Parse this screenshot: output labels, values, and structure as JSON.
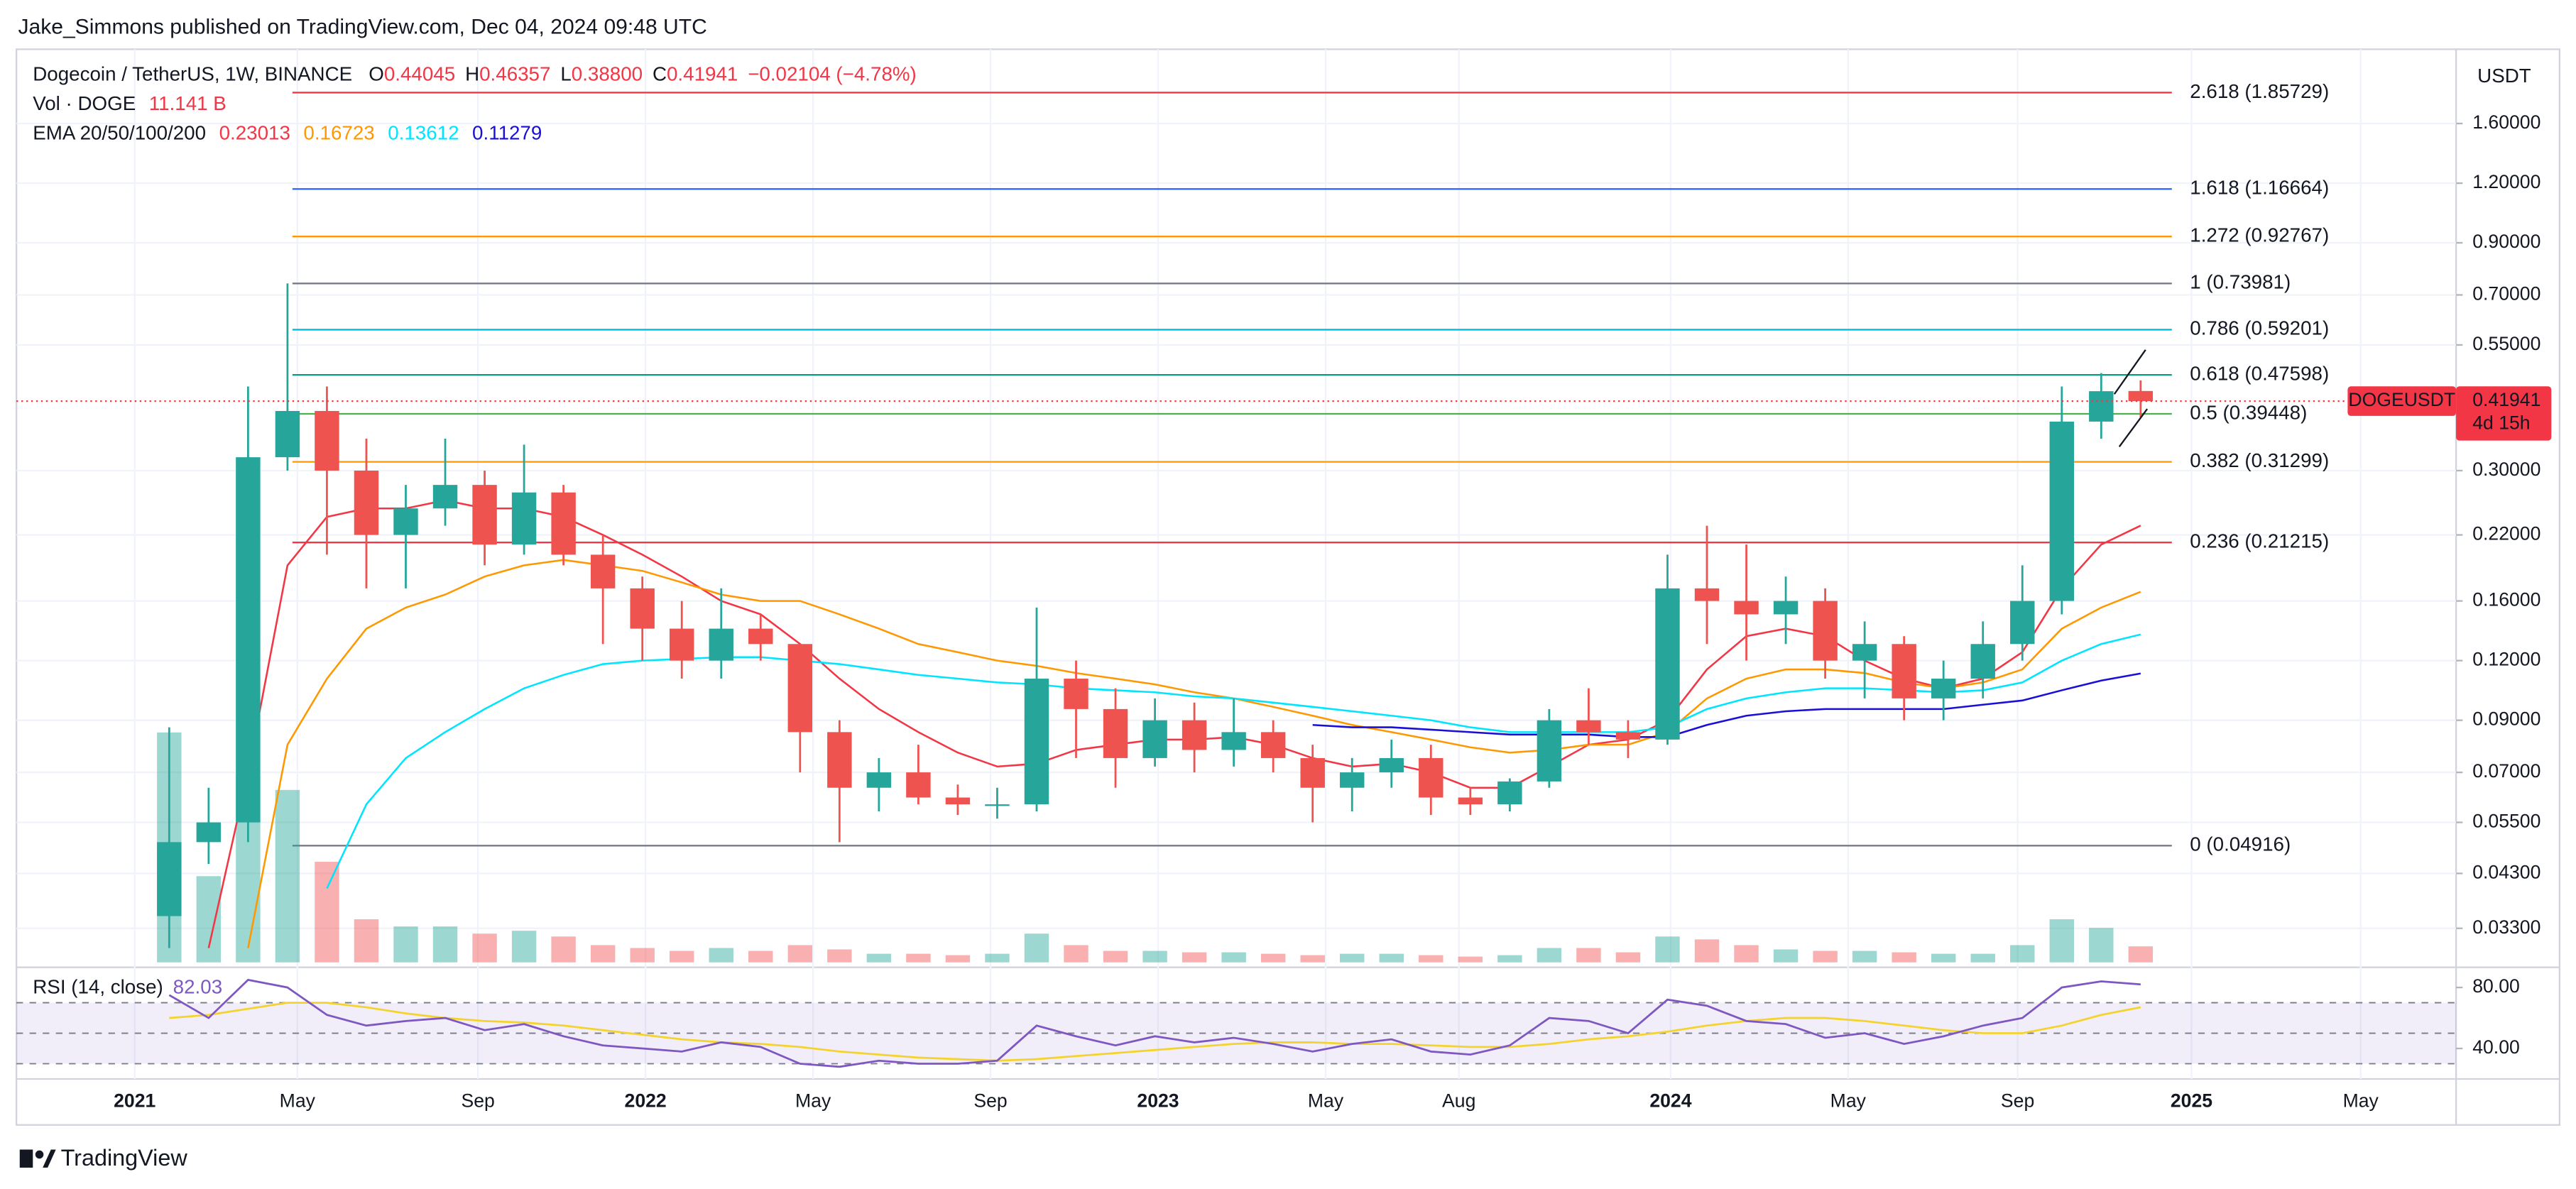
{
  "header": {
    "published_by": "Jake_Simmons published on TradingView.com, Dec 04, 2024 09:48 UTC"
  },
  "footer": {
    "brand": "TradingView"
  },
  "chart_data": {
    "type": "candlestick",
    "title": "Dogecoin / TetherUS, 1W, BINANCE",
    "ohlc_prefixes": [
      "O",
      "H",
      "L",
      "C"
    ],
    "low_label": "0.38800",
    "change": "−0.02104 (−4.78%)",
    "currency": "USDT",
    "symbol_tag": "DOGEUSDT",
    "countdown": "4d 15h",
    "up_color": "#26a69a",
    "down_color": "#ef5350",
    "log_scale": true,
    "grid": true,
    "ylim": [
      0.028,
      2.2
    ],
    "yticks": [
      {
        "value": 1.6,
        "label": "1.60000"
      },
      {
        "value": 1.2,
        "label": "1.20000"
      },
      {
        "value": 0.9,
        "label": "0.90000"
      },
      {
        "value": 0.7,
        "label": "0.70000"
      },
      {
        "value": 0.55,
        "label": "0.55000"
      },
      {
        "value": 0.3,
        "label": "0.30000"
      },
      {
        "value": 0.22,
        "label": "0.22000"
      },
      {
        "value": 0.16,
        "label": "0.16000"
      },
      {
        "value": 0.12,
        "label": "0.12000"
      },
      {
        "value": 0.09,
        "label": "0.09000"
      },
      {
        "value": 0.07,
        "label": "0.07000"
      },
      {
        "value": 0.055,
        "label": "0.05500"
      },
      {
        "value": 0.043,
        "label": "0.04300"
      },
      {
        "value": 0.033,
        "label": "0.03300"
      }
    ],
    "xlim": [
      -3.875,
      58
    ],
    "xticks": [
      {
        "value": -0.875,
        "label": "2021"
      },
      {
        "value": 3.25,
        "label": "May"
      },
      {
        "value": 7.83,
        "label": "Sep"
      },
      {
        "value": 12.08,
        "label": "2022"
      },
      {
        "value": 16.33,
        "label": "May"
      },
      {
        "value": 20.83,
        "label": "Sep"
      },
      {
        "value": 25.08,
        "label": "2023"
      },
      {
        "value": 29.33,
        "label": "May"
      },
      {
        "value": 32.71,
        "label": "Aug"
      },
      {
        "value": 38.08,
        "label": "2024"
      },
      {
        "value": 42.58,
        "label": "May"
      },
      {
        "value": 46.88,
        "label": "Sep"
      },
      {
        "value": 51.29,
        "label": "2025"
      },
      {
        "value": 55.58,
        "label": "May"
      }
    ],
    "open": [
      0.035,
      0.05,
      0.055,
      0.32,
      0.4,
      0.3,
      0.22,
      0.25,
      0.28,
      0.21,
      0.27,
      0.2,
      0.17,
      0.14,
      0.12,
      0.14,
      0.13,
      0.085,
      0.065,
      0.07,
      0.062,
      0.06,
      0.06,
      0.11,
      0.095,
      0.075,
      0.09,
      0.078,
      0.085,
      0.075,
      0.065,
      0.07,
      0.075,
      0.062,
      0.06,
      0.067,
      0.09,
      0.085,
      0.082,
      0.17,
      0.16,
      0.15,
      0.16,
      0.12,
      0.13,
      0.1,
      0.11,
      0.13,
      0.16,
      0.38,
      0.44045
    ],
    "high": [
      0.087,
      0.065,
      0.45,
      0.74,
      0.45,
      0.35,
      0.28,
      0.35,
      0.3,
      0.34,
      0.28,
      0.22,
      0.18,
      0.16,
      0.17,
      0.15,
      0.13,
      0.09,
      0.075,
      0.08,
      0.066,
      0.065,
      0.155,
      0.12,
      0.105,
      0.1,
      0.098,
      0.1,
      0.09,
      0.08,
      0.075,
      0.082,
      0.08,
      0.065,
      0.068,
      0.095,
      0.105,
      0.09,
      0.2,
      0.23,
      0.21,
      0.18,
      0.17,
      0.145,
      0.135,
      0.12,
      0.145,
      0.19,
      0.45,
      0.48,
      0.46357
    ],
    "low": [
      0.03,
      0.045,
      0.05,
      0.3,
      0.2,
      0.17,
      0.17,
      0.23,
      0.19,
      0.2,
      0.19,
      0.13,
      0.12,
      0.11,
      0.11,
      0.12,
      0.07,
      0.05,
      0.058,
      0.06,
      0.057,
      0.056,
      0.058,
      0.075,
      0.065,
      0.072,
      0.07,
      0.072,
      0.07,
      0.055,
      0.058,
      0.065,
      0.057,
      0.057,
      0.058,
      0.065,
      0.08,
      0.075,
      0.08,
      0.13,
      0.12,
      0.13,
      0.11,
      0.1,
      0.09,
      0.09,
      0.1,
      0.12,
      0.15,
      0.35,
      0.388
    ],
    "close": [
      0.05,
      0.055,
      0.32,
      0.4,
      0.3,
      0.22,
      0.25,
      0.28,
      0.21,
      0.27,
      0.2,
      0.17,
      0.14,
      0.12,
      0.14,
      0.13,
      0.085,
      0.065,
      0.07,
      0.062,
      0.06,
      0.06,
      0.11,
      0.095,
      0.075,
      0.09,
      0.078,
      0.085,
      0.075,
      0.065,
      0.07,
      0.075,
      0.062,
      0.06,
      0.067,
      0.09,
      0.085,
      0.082,
      0.17,
      0.16,
      0.15,
      0.16,
      0.12,
      0.13,
      0.1,
      0.11,
      0.13,
      0.16,
      0.38,
      0.44,
      0.41941
    ],
    "volume": {
      "name": "Vol · DOGE",
      "value_label": "11.141 B",
      "ylim": [
        0,
        200
      ],
      "values": [
        160,
        60,
        130,
        120,
        70,
        30,
        25,
        25,
        20,
        22,
        18,
        12,
        10,
        8,
        10,
        8,
        12,
        9,
        6,
        6,
        5,
        6,
        20,
        12,
        8,
        8,
        7,
        7,
        6,
        5,
        6,
        6,
        5,
        4,
        5,
        10,
        10,
        7,
        18,
        16,
        12,
        9,
        8,
        8,
        7,
        6,
        6,
        12,
        30,
        24,
        11.141
      ]
    },
    "ema": {
      "name": "EMA 20/50/100/200",
      "series": [
        {
          "name": "20",
          "color": "#f23645",
          "values": [
            null,
            0.03,
            0.07,
            0.19,
            0.24,
            0.25,
            0.25,
            0.26,
            0.25,
            0.25,
            0.24,
            0.22,
            0.2,
            0.18,
            0.16,
            0.15,
            0.13,
            0.11,
            0.095,
            0.085,
            0.077,
            0.072,
            0.073,
            0.078,
            0.08,
            0.082,
            0.082,
            0.083,
            0.08,
            0.075,
            0.072,
            0.073,
            0.07,
            0.065,
            0.065,
            0.072,
            0.08,
            0.082,
            0.09,
            0.115,
            0.135,
            0.14,
            0.135,
            0.12,
            0.11,
            0.105,
            0.11,
            0.125,
            0.17,
            0.21,
            0.23013
          ]
        },
        {
          "name": "50",
          "color": "#ff9800",
          "values": [
            null,
            null,
            0.03,
            0.08,
            0.11,
            0.14,
            0.155,
            0.165,
            0.18,
            0.19,
            0.195,
            0.19,
            0.185,
            0.175,
            0.165,
            0.16,
            0.16,
            0.15,
            0.14,
            0.13,
            0.125,
            0.12,
            0.117,
            0.113,
            0.11,
            0.107,
            0.103,
            0.1,
            0.096,
            0.092,
            0.088,
            0.085,
            0.082,
            0.079,
            0.077,
            0.078,
            0.08,
            0.08,
            0.085,
            0.1,
            0.11,
            0.115,
            0.115,
            0.113,
            0.108,
            0.105,
            0.108,
            0.115,
            0.14,
            0.155,
            0.16723
          ]
        },
        {
          "name": "100",
          "color": "#00e5ff",
          "values": [
            null,
            null,
            null,
            null,
            0.04,
            0.06,
            0.075,
            0.085,
            0.095,
            0.105,
            0.112,
            0.118,
            0.12,
            0.121,
            0.122,
            0.122,
            0.12,
            0.118,
            0.115,
            0.112,
            0.11,
            0.108,
            0.107,
            0.105,
            0.104,
            0.103,
            0.101,
            0.1,
            0.098,
            0.096,
            0.094,
            0.092,
            0.09,
            0.087,
            0.085,
            0.085,
            0.085,
            0.085,
            0.087,
            0.095,
            0.1,
            0.103,
            0.105,
            0.105,
            0.104,
            0.103,
            0.104,
            0.108,
            0.12,
            0.13,
            0.13612
          ]
        },
        {
          "name": "200",
          "color": "#1a0fd6",
          "values": [
            null,
            null,
            null,
            null,
            null,
            null,
            null,
            null,
            null,
            null,
            null,
            null,
            null,
            null,
            null,
            null,
            null,
            null,
            null,
            null,
            null,
            null,
            null,
            null,
            null,
            null,
            null,
            null,
            null,
            0.088,
            0.087,
            0.087,
            0.086,
            0.085,
            0.084,
            0.084,
            0.084,
            0.083,
            0.083,
            0.088,
            0.092,
            0.094,
            0.095,
            0.095,
            0.095,
            0.095,
            0.097,
            0.099,
            0.104,
            0.109,
            0.11279
          ]
        }
      ]
    },
    "fib_levels": [
      {
        "label": "2.618 (1.85729)",
        "value": 1.85729,
        "color": "#f23645"
      },
      {
        "label": "1.618 (1.16664)",
        "value": 1.16664,
        "color": "#2962ff"
      },
      {
        "label": "1.272 (0.92767)",
        "value": 0.92767,
        "color": "#ff9800"
      },
      {
        "label": "1 (0.73981)",
        "value": 0.73981,
        "color": "#787b86"
      },
      {
        "label": "0.786 (0.59201)",
        "value": 0.59201,
        "color": "#00bcd4"
      },
      {
        "label": "0.618 (0.47598)",
        "value": 0.47598,
        "color": "#089981"
      },
      {
        "label": "0.5 (0.39448)",
        "value": 0.39448,
        "color": "#4caf50"
      },
      {
        "label": "0.382 (0.31299)",
        "value": 0.31299,
        "color": "#ff9800"
      },
      {
        "label": "0.236 (0.21215)",
        "value": 0.21215,
        "color": "#f23645"
      },
      {
        "label": "0 (0.04916)",
        "value": 0.04916,
        "color": "#787b86"
      }
    ],
    "rsi": {
      "name": "RSI (14, close)",
      "color": "#7e57c2",
      "ma_color": "#f5d32f",
      "ylim": [
        20,
        90
      ],
      "yticks": [
        {
          "value": 80,
          "label": "80.00"
        },
        {
          "value": 40,
          "label": "40.00"
        }
      ],
      "levels": [
        70,
        50,
        30
      ],
      "values": [
        75,
        60,
        85,
        80,
        62,
        55,
        58,
        60,
        52,
        56,
        48,
        42,
        40,
        38,
        44,
        41,
        30,
        28,
        32,
        30,
        30,
        32,
        55,
        48,
        42,
        48,
        44,
        47,
        43,
        38,
        43,
        46,
        38,
        36,
        42,
        60,
        58,
        50,
        72,
        68,
        58,
        56,
        47,
        50,
        43,
        48,
        55,
        60,
        80,
        84,
        82.03
      ],
      "ma": [
        60,
        62,
        66,
        70,
        70,
        67,
        63,
        60,
        58,
        57,
        55,
        52,
        49,
        46,
        44,
        43,
        41,
        38,
        36,
        34,
        33,
        32,
        33,
        35,
        37,
        39,
        41,
        43,
        44,
        44,
        43,
        43,
        42,
        41,
        41,
        43,
        46,
        48,
        51,
        55,
        58,
        60,
        60,
        58,
        55,
        52,
        50,
        50,
        55,
        62,
        67
      ]
    }
  }
}
